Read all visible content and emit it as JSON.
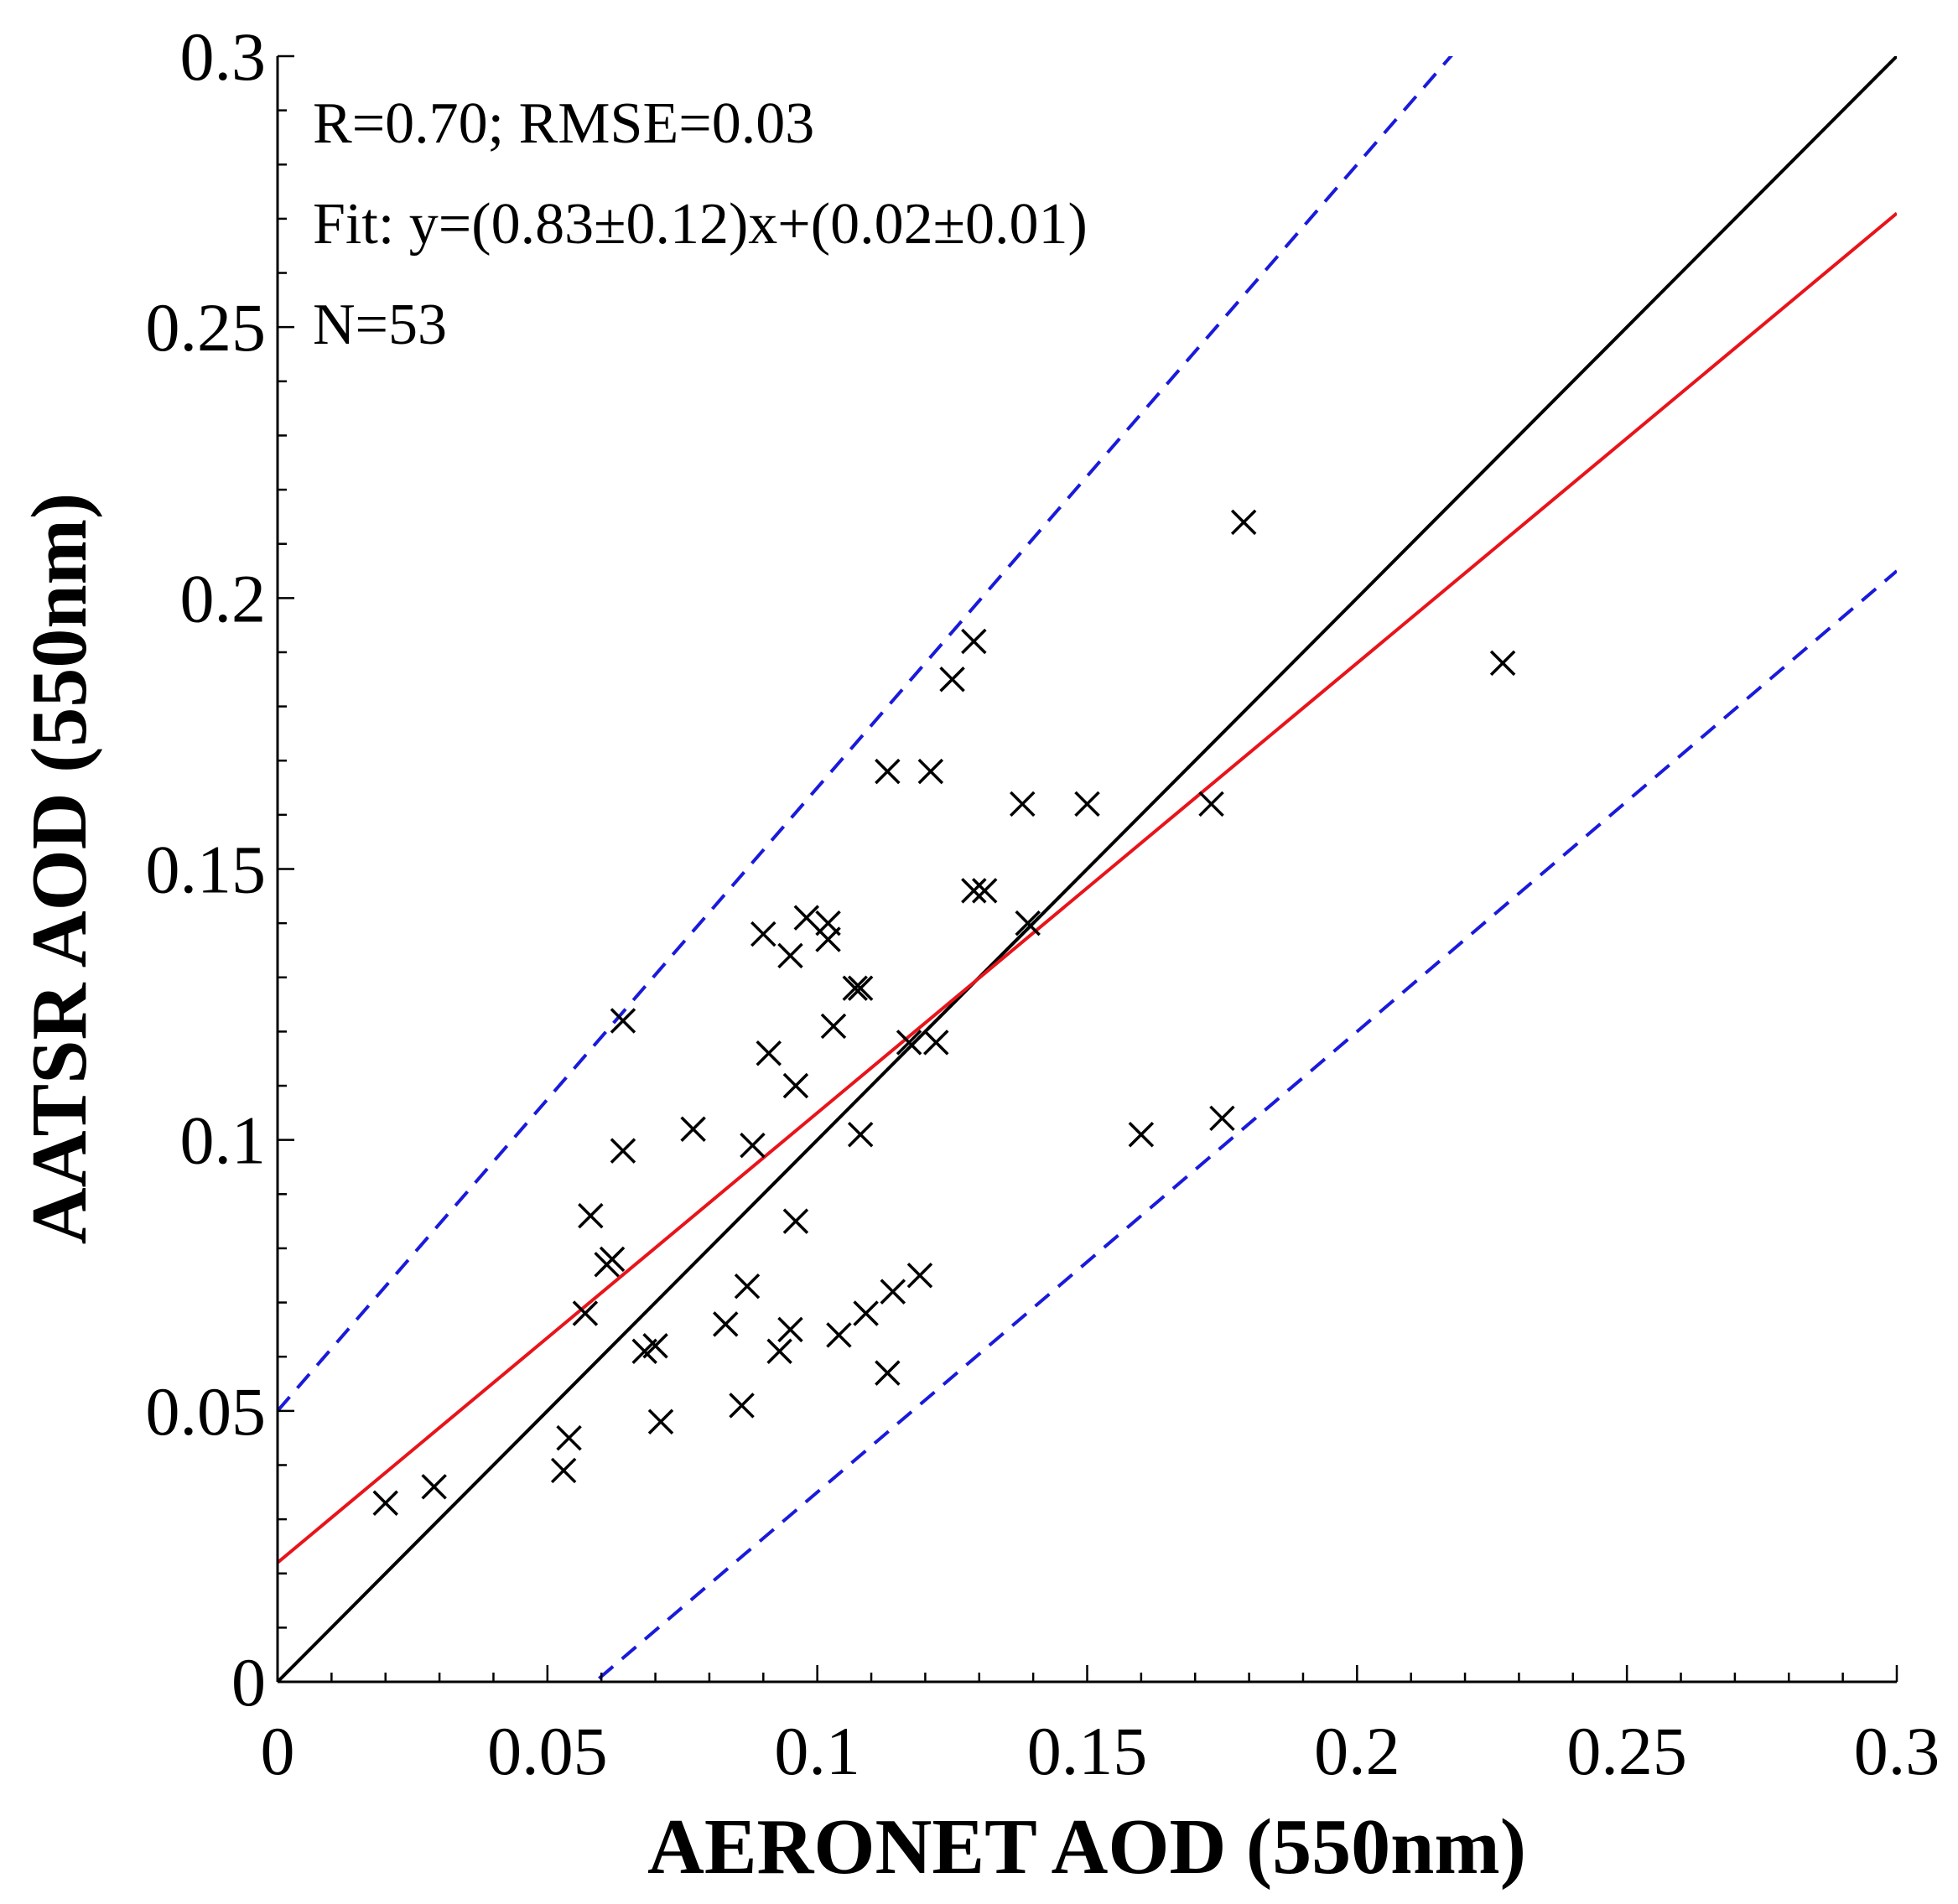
{
  "chart_data": {
    "type": "scatter",
    "title": "",
    "xlabel": "AERONET AOD (550nm)",
    "ylabel": "AATSR AOD (550nm)",
    "xlim": [
      0,
      0.3
    ],
    "ylim": [
      0,
      0.3
    ],
    "xticks": [
      0,
      0.05,
      0.1,
      0.15,
      0.2,
      0.25,
      0.3
    ],
    "yticks": [
      0,
      0.05,
      0.1,
      0.15,
      0.2,
      0.25,
      0.3
    ],
    "xtick_labels": [
      "0",
      "0.05",
      "0.1",
      "0.15",
      "0.2",
      "0.25",
      "0.3"
    ],
    "ytick_labels": [
      "0",
      "0.05",
      "0.1",
      "0.15",
      "0.2",
      "0.25",
      "0.3"
    ],
    "grid": false,
    "annotations": [
      "R=0.70; RMSE=0.03",
      "Fit: y=(0.83±0.12)x+(0.02±0.01)",
      "N=53"
    ],
    "lines": [
      {
        "name": "1:1 line",
        "slope": 1.0,
        "intercept": 0.0,
        "color": "#000000",
        "style": "solid"
      },
      {
        "name": "fit",
        "slope": 0.83,
        "intercept": 0.022,
        "color": "#e8141b",
        "style": "solid"
      },
      {
        "name": "upper EE",
        "slope": 1.15,
        "intercept": 0.05,
        "color": "#1a1adb",
        "style": "dashed"
      },
      {
        "name": "lower EE",
        "slope": 0.85,
        "intercept": -0.05,
        "color": "#1a1adb",
        "style": "dashed"
      }
    ],
    "series": [
      {
        "name": "AATSR vs AERONET",
        "marker": "x",
        "color": "#000000",
        "points": [
          [
            0.02,
            0.033
          ],
          [
            0.029,
            0.036
          ],
          [
            0.053,
            0.039
          ],
          [
            0.054,
            0.045
          ],
          [
            0.057,
            0.068
          ],
          [
            0.058,
            0.086
          ],
          [
            0.061,
            0.077
          ],
          [
            0.062,
            0.078
          ],
          [
            0.064,
            0.098
          ],
          [
            0.064,
            0.122
          ],
          [
            0.068,
            0.061
          ],
          [
            0.07,
            0.062
          ],
          [
            0.071,
            0.048
          ],
          [
            0.077,
            0.102
          ],
          [
            0.083,
            0.066
          ],
          [
            0.086,
            0.051
          ],
          [
            0.087,
            0.073
          ],
          [
            0.088,
            0.099
          ],
          [
            0.09,
            0.138
          ],
          [
            0.091,
            0.116
          ],
          [
            0.093,
            0.061
          ],
          [
            0.095,
            0.065
          ],
          [
            0.095,
            0.134
          ],
          [
            0.096,
            0.085
          ],
          [
            0.096,
            0.11
          ],
          [
            0.098,
            0.141
          ],
          [
            0.102,
            0.137
          ],
          [
            0.102,
            0.14
          ],
          [
            0.103,
            0.121
          ],
          [
            0.104,
            0.064
          ],
          [
            0.107,
            0.128
          ],
          [
            0.108,
            0.128
          ],
          [
            0.108,
            0.101
          ],
          [
            0.109,
            0.068
          ],
          [
            0.113,
            0.057
          ],
          [
            0.113,
            0.168
          ],
          [
            0.114,
            0.072
          ],
          [
            0.117,
            0.118
          ],
          [
            0.119,
            0.075
          ],
          [
            0.121,
            0.168
          ],
          [
            0.122,
            0.118
          ],
          [
            0.125,
            0.185
          ],
          [
            0.129,
            0.192
          ],
          [
            0.129,
            0.146
          ],
          [
            0.131,
            0.146
          ],
          [
            0.138,
            0.162
          ],
          [
            0.139,
            0.14
          ],
          [
            0.15,
            0.162
          ],
          [
            0.16,
            0.101
          ],
          [
            0.173,
            0.162
          ],
          [
            0.175,
            0.104
          ],
          [
            0.179,
            0.214
          ],
          [
            0.227,
            0.188
          ]
        ]
      }
    ]
  }
}
